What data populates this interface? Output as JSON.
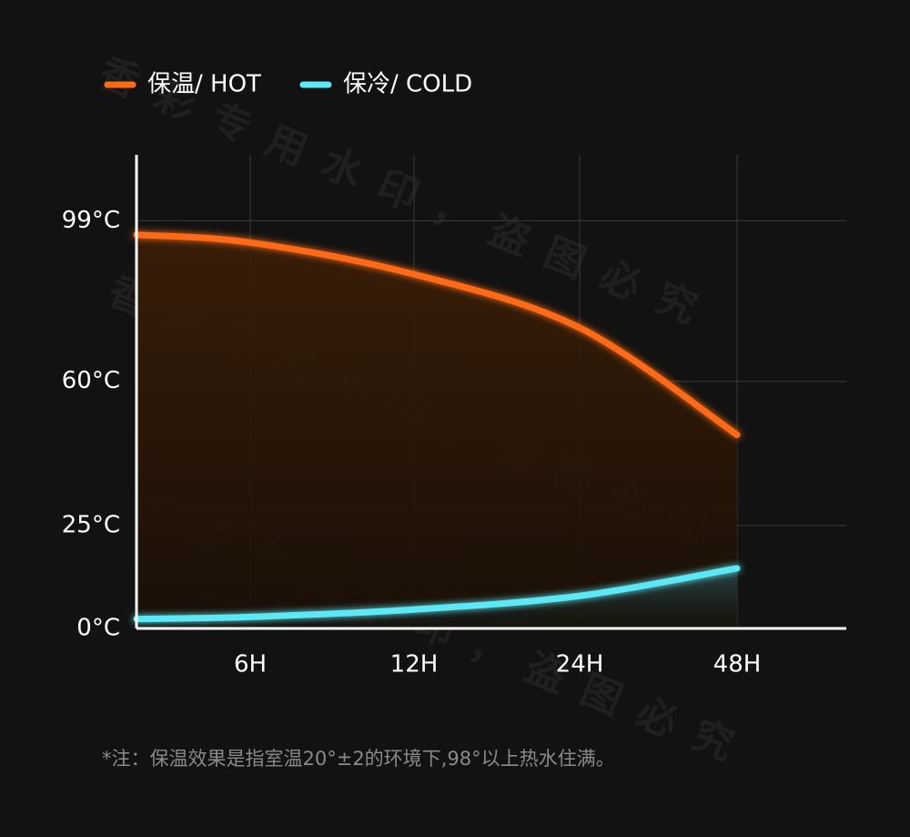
{
  "chart_data": {
    "type": "line",
    "categories": [
      null,
      "6H",
      "12H",
      "24H",
      "48H"
    ],
    "series": [
      {
        "name": "保温/ HOT",
        "color": "#ff6a13",
        "values": [
          95.6,
          93.7,
          86,
          73,
          47
        ]
      },
      {
        "name": "保冷/ COLD",
        "color": "#5ce8f5",
        "values": [
          2.3,
          2.8,
          4.6,
          7.9,
          14.6
        ]
      }
    ],
    "ylim": [
      0,
      115
    ],
    "yticks": [
      {
        "value": 0,
        "label": "0°C"
      },
      {
        "value": 25,
        "label": "25°C"
      },
      {
        "value": 60,
        "label": "60°C"
      },
      {
        "value": 99,
        "label": "99°C"
      }
    ],
    "grid": true,
    "legend": "top-left",
    "footnote": "*注：保温效果是指室温20°±2的环境下,98°以上热水住满。",
    "watermark": "香彩专用水印，盗图必究"
  }
}
